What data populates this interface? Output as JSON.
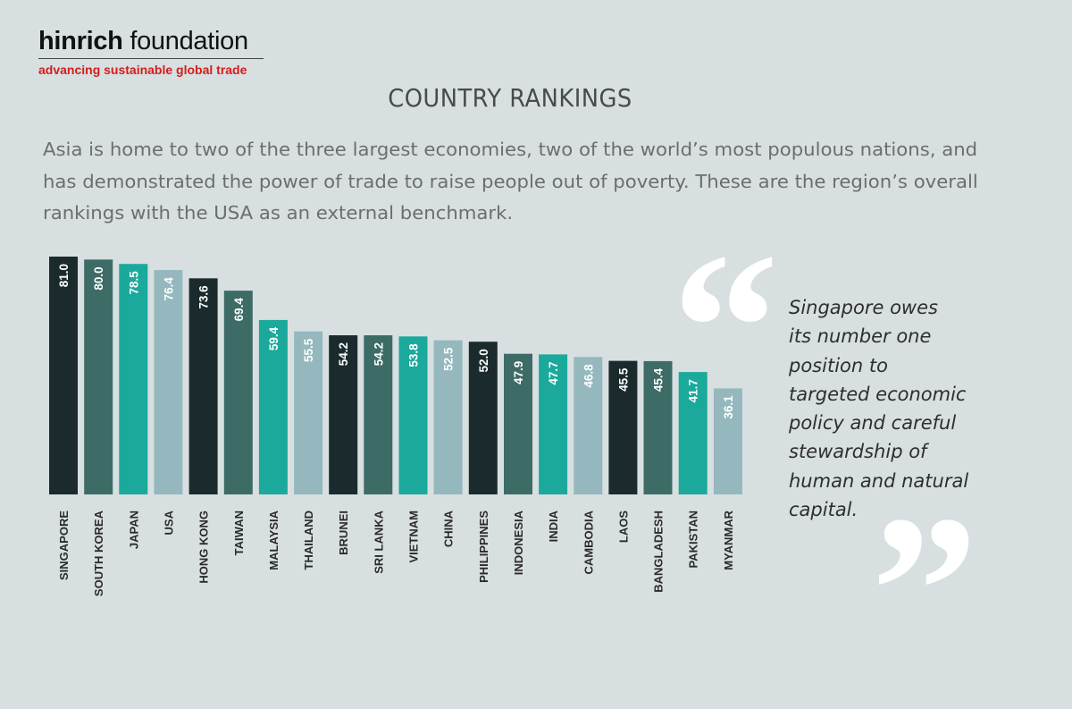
{
  "logo": {
    "name_bold": "hinrich",
    "name_light": " foundation",
    "tagline": "advancing sustainable global trade"
  },
  "title": "COUNTRY RANKINGS",
  "intro": "Asia is home to two of the three largest economies, two of the world’s most populous nations, and has demonstrated the power of trade to raise people out of poverty. These are the region’s overall rankings with the USA as an external benchmark.",
  "quote": {
    "open_mark": "“",
    "close_mark": "”",
    "text": "Singapore owes\nits number one\nposition to\ntargeted economic\npolicy and careful\nstewardship of\nhuman and natural\ncapital."
  },
  "colors": {
    "dark": "#1b2b2d",
    "teal_dark": "#3d6b66",
    "teal": "#1ba99c",
    "light": "#94b8bd",
    "background": "#d8dfe0"
  },
  "chart_data": {
    "type": "bar",
    "categories": [
      "SINGAPORE",
      "SOUTH KOREA",
      "JAPAN",
      "USA",
      "HONG KONG",
      "TAIWAN",
      "MALAYSIA",
      "THAILAND",
      "BRUNEI",
      "SRI LANKA",
      "VIETNAM",
      "CHINA",
      "PHILIPPINES",
      "INDONESIA",
      "INDIA",
      "CAMBODIA",
      "LAOS",
      "BANGLADESH",
      "PAKISTAN",
      "MYANMAR"
    ],
    "values": [
      81.0,
      80.0,
      78.5,
      76.4,
      73.6,
      69.4,
      59.4,
      55.5,
      54.2,
      54.2,
      53.8,
      52.5,
      52.0,
      47.9,
      47.7,
      46.8,
      45.5,
      45.4,
      41.7,
      36.1
    ],
    "value_labels": [
      "81.0",
      "80.0",
      "78.5",
      "76.4",
      "73.6",
      "69.4",
      "59.4",
      "55.5",
      "54.2",
      "54.2",
      "53.8",
      "52.5",
      "52.0",
      "47.9",
      "47.7",
      "46.8",
      "45.5",
      "45.4",
      "41.7",
      "36.1"
    ],
    "bar_colors": [
      "#1b2b2d",
      "#3d6b66",
      "#1ba99c",
      "#94b8bd",
      "#1b2b2d",
      "#3d6b66",
      "#1ba99c",
      "#94b8bd",
      "#1b2b2d",
      "#3d6b66",
      "#1ba99c",
      "#94b8bd",
      "#1b2b2d",
      "#3d6b66",
      "#1ba99c",
      "#94b8bd",
      "#1b2b2d",
      "#3d6b66",
      "#1ba99c",
      "#94b8bd"
    ],
    "title": "",
    "xlabel": "",
    "ylabel": "",
    "ylim": [
      0,
      81.0
    ],
    "grid": false,
    "legend": "none"
  }
}
